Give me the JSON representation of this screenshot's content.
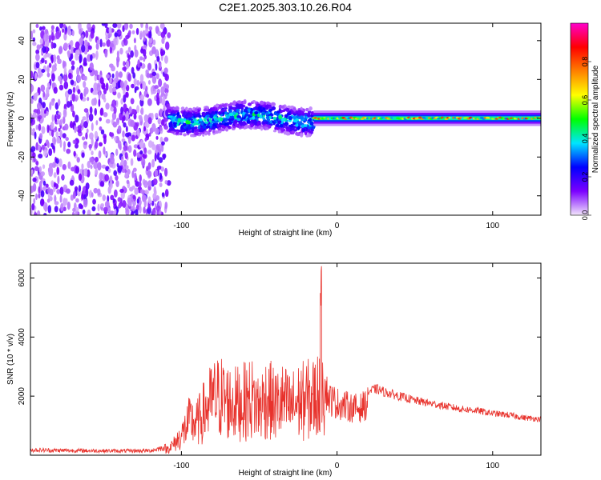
{
  "title": "C2E1.2025.303.10.26.R04",
  "chart_data": [
    {
      "type": "heatmap",
      "title": "C2E1.2025.303.10.26.R04",
      "xlabel": "Height of straight line (km)",
      "ylabel": "Frequency (Hz)",
      "xlim": [
        -197,
        131
      ],
      "ylim": [
        -50,
        49
      ],
      "x_ticks": [
        -100,
        0,
        100
      ],
      "y_ticks": [
        -40,
        -20,
        0,
        20,
        40
      ],
      "colorbar": {
        "label": "Normalized spectral amplitude",
        "range": [
          0.0,
          1.0
        ],
        "ticks": [
          "0.0",
          "0.2",
          "0.4",
          "0.6",
          "0.8"
        ],
        "tick_values": [
          0.0,
          0.2,
          0.4,
          0.6,
          0.8
        ],
        "colors": [
          "#f2e6fb",
          "#7b00ff",
          "#0000ff",
          "#00e5ff",
          "#00ff00",
          "#ffff00",
          "#ff8000",
          "#ff0000",
          "#ff00cc"
        ]
      },
      "features": [
        {
          "description": "broadband noise",
          "x_range": [
            -197,
            -108
          ],
          "freq_range": [
            -50,
            49
          ],
          "amplitude": 0.08
        },
        {
          "description": "signal band onset",
          "x_range": [
            -108,
            -15
          ],
          "center_freq": 0,
          "halfwidth_hz": 7,
          "amplitude_range": [
            0.2,
            0.45
          ]
        },
        {
          "description": "narrow strong carrier",
          "x_range": [
            -15,
            131
          ],
          "center_freq": 0,
          "halfwidth_hz": 4,
          "amplitude_range": [
            0.3,
            0.9
          ]
        }
      ]
    },
    {
      "type": "line",
      "xlabel": "Height of straight line (km)",
      "ylabel": "SNR (10 * v/v)",
      "xlim": [
        -197,
        131
      ],
      "ylim": [
        0,
        6500
      ],
      "x_ticks": [
        -100,
        0,
        100
      ],
      "y_ticks": [
        2000,
        4000,
        6000
      ],
      "color": "#e8322c",
      "series": [
        {
          "name": "SNR",
          "x": [
            -197,
            -180,
            -160,
            -140,
            -120,
            -110,
            -105,
            -100,
            -95,
            -90,
            -85,
            -80,
            -75,
            -70,
            -65,
            -60,
            -55,
            -50,
            -45,
            -40,
            -35,
            -30,
            -25,
            -20,
            -15,
            -12,
            -10,
            -8,
            -5,
            0,
            5,
            10,
            15,
            20,
            25,
            30,
            40,
            50,
            60,
            70,
            80,
            90,
            100,
            110,
            120,
            131
          ],
          "values": [
            200,
            180,
            170,
            160,
            170,
            300,
            600,
            1100,
            1900,
            1800,
            2500,
            3100,
            3300,
            3000,
            2900,
            3000,
            3200,
            2700,
            3300,
            2800,
            3000,
            2700,
            3000,
            3100,
            3200,
            3400,
            6400,
            2900,
            2400,
            2200,
            2100,
            2000,
            2000,
            2200,
            2300,
            2200,
            2050,
            1900,
            1800,
            1700,
            1600,
            1550,
            1450,
            1400,
            1300,
            1250
          ]
        }
      ]
    }
  ]
}
